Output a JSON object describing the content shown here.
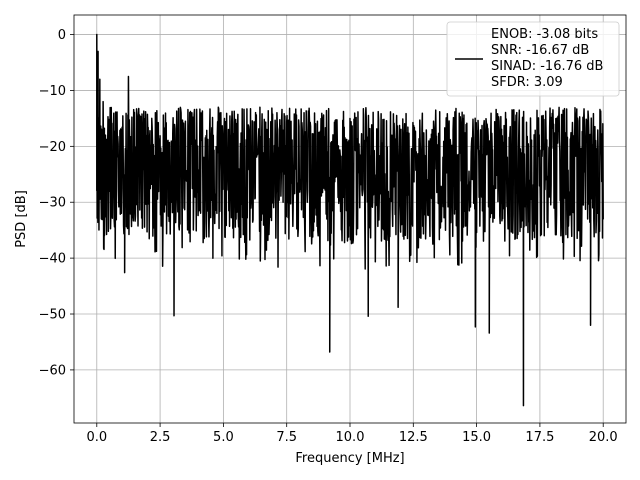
{
  "chart_data": {
    "type": "line",
    "xlabel": "Frequency [MHz]",
    "ylabel": "PSD [dB]",
    "xlim": [
      -0.9,
      20.9
    ],
    "ylim": [
      -69.5,
      3.5
    ],
    "grid": true,
    "legend_placement": "top-right",
    "x_ticks": [
      0,
      2.5,
      5,
      7.5,
      10,
      12.5,
      15,
      17.5,
      20
    ],
    "x_tick_labels": [
      "0.0",
      "2.5",
      "5.0",
      "7.5",
      "10.0",
      "12.5",
      "15.0",
      "17.5",
      "20.0"
    ],
    "y_ticks": [
      0,
      -10,
      -20,
      -30,
      -40,
      -50,
      -60
    ],
    "y_tick_labels": [
      "0",
      "−10",
      "−20",
      "−30",
      "−40",
      "−50",
      "−60"
    ],
    "series": [
      {
        "color": "#000000",
        "x_range": [
          0,
          20
        ],
        "x": [
          0.0,
          0.02,
          0.05,
          0.08,
          0.12,
          0.18,
          0.25,
          0.3,
          1.1,
          1.25,
          3.05,
          9.2,
          10.72,
          11.9,
          14.95,
          15.5,
          16.85,
          19.5
        ],
        "y": [
          0.0,
          -17.0,
          -3.0,
          -28.0,
          -8.0,
          -33.0,
          -12.0,
          -36.0,
          -42.6,
          -7.5,
          -50.3,
          -56.8,
          -50.4,
          -48.8,
          -52.3,
          -53.4,
          -66.4,
          -52.0
        ],
        "envelope": {
          "note_free": true,
          "upper": [
            -12,
            -13,
            -12.5
          ],
          "lower": [
            -37,
            -38,
            -39
          ]
        }
      }
    ],
    "legend": [
      "ENOB: -3.08 bits",
      "SNR: -16.67 dB",
      "SINAD: -16.76 dB",
      "SFDR: 3.09"
    ]
  }
}
